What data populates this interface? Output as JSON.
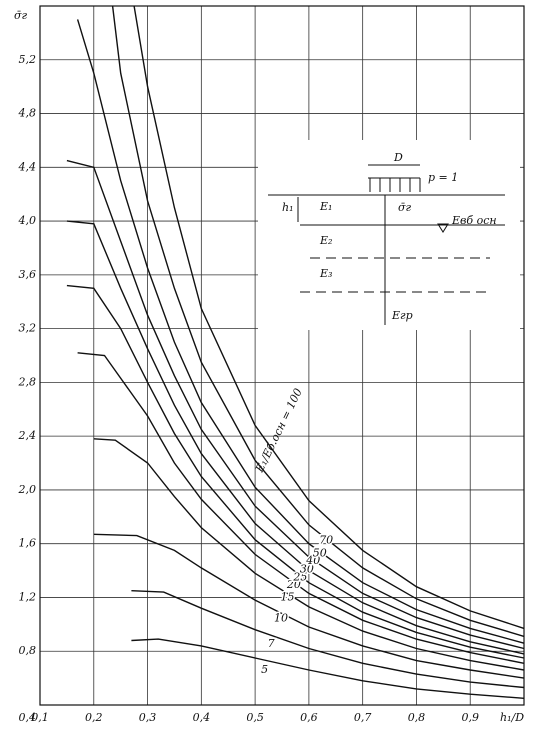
{
  "chart_data": {
    "type": "line",
    "y_label": "σ̄г",
    "x_label": "h₁/D",
    "xlim": [
      0.1,
      1.0
    ],
    "ylim": [
      0.4,
      5.6
    ],
    "xticks": [
      {
        "value": 0.1,
        "label": "0,1"
      },
      {
        "value": 0.2,
        "label": "0,2"
      },
      {
        "value": 0.3,
        "label": "0,3"
      },
      {
        "value": 0.4,
        "label": "0,4"
      },
      {
        "value": 0.5,
        "label": "0,5"
      },
      {
        "value": 0.6,
        "label": "0,6"
      },
      {
        "value": 0.7,
        "label": "0,7"
      },
      {
        "value": 0.8,
        "label": "0,8"
      },
      {
        "value": 0.9,
        "label": "0,9"
      }
    ],
    "yticks": [
      {
        "value": 0.4,
        "label": "0,4"
      },
      {
        "value": 0.8,
        "label": "0,8"
      },
      {
        "value": 1.2,
        "label": "1,2"
      },
      {
        "value": 1.6,
        "label": "1,6"
      },
      {
        "value": 2.0,
        "label": "2,0"
      },
      {
        "value": 2.4,
        "label": "2,4"
      },
      {
        "value": 2.8,
        "label": "2,8"
      },
      {
        "value": 3.2,
        "label": "3,2"
      },
      {
        "value": 3.6,
        "label": "3,6"
      },
      {
        "value": 4.0,
        "label": "4,0"
      },
      {
        "value": 4.4,
        "label": "4,4"
      },
      {
        "value": 4.8,
        "label": "4,8"
      },
      {
        "value": 5.2,
        "label": "5,2"
      }
    ],
    "grid": true,
    "color": "#111111",
    "series": [
      {
        "name": "5",
        "x": [
          0.27,
          0.32,
          0.4,
          0.5,
          0.6,
          0.7,
          0.8,
          0.9,
          1.0
        ],
        "values": [
          0.88,
          0.89,
          0.84,
          0.75,
          0.66,
          0.58,
          0.52,
          0.48,
          0.45
        ]
      },
      {
        "name": "7",
        "x": [
          0.27,
          0.33,
          0.4,
          0.5,
          0.6,
          0.7,
          0.8,
          0.9,
          1.0
        ],
        "values": [
          1.25,
          1.24,
          1.12,
          0.96,
          0.82,
          0.71,
          0.63,
          0.57,
          0.53
        ]
      },
      {
        "name": "10",
        "x": [
          0.2,
          0.28,
          0.35,
          0.4,
          0.5,
          0.6,
          0.7,
          0.8,
          0.9,
          1.0
        ],
        "values": [
          1.67,
          1.66,
          1.55,
          1.42,
          1.18,
          0.98,
          0.84,
          0.73,
          0.66,
          0.6
        ]
      },
      {
        "name": "15",
        "x": [
          0.2,
          0.24,
          0.3,
          0.35,
          0.4,
          0.5,
          0.6,
          0.7,
          0.8,
          0.9,
          1.0
        ],
        "values": [
          2.38,
          2.37,
          2.2,
          1.95,
          1.72,
          1.38,
          1.13,
          0.95,
          0.82,
          0.73,
          0.66
        ]
      },
      {
        "name": "20",
        "x": [
          0.17,
          0.22,
          0.3,
          0.35,
          0.4,
          0.5,
          0.6,
          0.7,
          0.8,
          0.9,
          1.0
        ],
        "values": [
          3.02,
          3.0,
          2.55,
          2.2,
          1.93,
          1.52,
          1.23,
          1.03,
          0.89,
          0.79,
          0.71
        ]
      },
      {
        "name": "25",
        "x": [
          0.15,
          0.2,
          0.25,
          0.3,
          0.35,
          0.4,
          0.5,
          0.6,
          0.7,
          0.8,
          0.9,
          1.0
        ],
        "values": [
          3.52,
          3.5,
          3.2,
          2.8,
          2.42,
          2.1,
          1.63,
          1.31,
          1.09,
          0.94,
          0.83,
          0.75
        ]
      },
      {
        "name": "30",
        "x": [
          0.15,
          0.2,
          0.25,
          0.3,
          0.35,
          0.4,
          0.5,
          0.6,
          0.7,
          0.8,
          0.9,
          1.0
        ],
        "values": [
          4.0,
          3.98,
          3.5,
          3.05,
          2.63,
          2.27,
          1.75,
          1.4,
          1.16,
          0.99,
          0.87,
          0.78
        ]
      },
      {
        "name": "40",
        "x": [
          0.15,
          0.2,
          0.25,
          0.3,
          0.35,
          0.4,
          0.5,
          0.6,
          0.7,
          0.8,
          0.9,
          1.0
        ],
        "values": [
          4.45,
          4.4,
          3.85,
          3.3,
          2.85,
          2.45,
          1.88,
          1.5,
          1.23,
          1.05,
          0.92,
          0.82
        ]
      },
      {
        "name": "50",
        "x": [
          0.17,
          0.2,
          0.25,
          0.3,
          0.35,
          0.4,
          0.5,
          0.6,
          0.7,
          0.8,
          0.9,
          1.0
        ],
        "values": [
          5.5,
          5.1,
          4.3,
          3.65,
          3.1,
          2.65,
          2.02,
          1.6,
          1.31,
          1.11,
          0.97,
          0.86
        ]
      },
      {
        "name": "70",
        "x": [
          0.235,
          0.25,
          0.3,
          0.35,
          0.4,
          0.5,
          0.6,
          0.7,
          0.8,
          0.9,
          1.0
        ],
        "values": [
          5.6,
          5.1,
          4.15,
          3.5,
          2.95,
          2.22,
          1.74,
          1.42,
          1.19,
          1.03,
          0.91
        ]
      },
      {
        "name": "E₁/Eб.осн = 100",
        "x": [
          0.275,
          0.3,
          0.35,
          0.4,
          0.5,
          0.6,
          0.7,
          0.8,
          0.9,
          1.0
        ],
        "values": [
          5.6,
          5.0,
          4.1,
          3.35,
          2.48,
          1.92,
          1.55,
          1.28,
          1.1,
          0.97
        ]
      }
    ],
    "inset_labels": [
      "D",
      "p = 1",
      "h₁",
      "E₁",
      "σ̄г",
      "Eвб осн",
      "E₂",
      "E₃",
      "Eгр"
    ]
  }
}
